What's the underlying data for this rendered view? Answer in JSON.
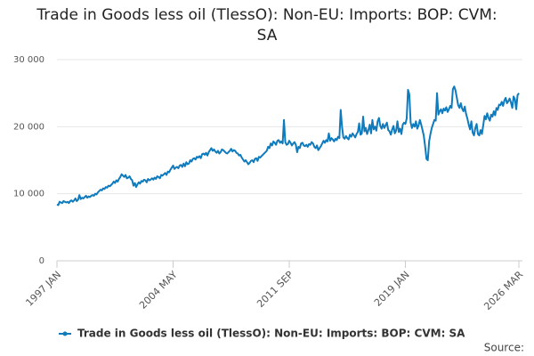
{
  "chart_data": {
    "type": "line",
    "title": "Trade in Goods less oil (TlessO): Non-EU: Imports: BOP: CVM: SA",
    "source": "Source:",
    "categories": [
      "1997 JAN",
      null,
      null,
      null,
      null,
      null,
      null,
      null,
      null,
      null,
      null,
      null,
      null,
      null,
      null,
      null,
      null,
      null,
      null,
      null,
      null,
      null,
      null,
      null,
      null,
      null,
      null,
      null,
      null,
      null,
      null,
      null,
      null,
      null,
      null,
      null,
      null,
      null,
      null,
      null,
      null,
      null,
      null,
      null,
      null,
      null,
      null,
      null,
      null,
      null,
      null,
      null,
      null,
      null,
      null,
      null,
      null,
      null,
      null,
      null,
      null,
      null,
      null,
      null,
      null,
      null,
      null,
      null,
      null,
      null,
      null,
      null,
      null,
      null,
      null,
      null,
      null,
      null,
      null,
      null,
      null,
      null,
      null,
      null,
      null,
      null,
      null,
      null,
      "2004 MAY",
      null,
      null,
      null,
      null,
      null,
      null,
      null,
      null,
      null,
      null,
      null,
      null,
      null,
      null,
      null,
      null,
      null,
      null,
      null,
      null,
      null,
      null,
      null,
      null,
      null,
      null,
      null,
      null,
      null,
      null,
      null,
      null,
      null,
      null,
      null,
      null,
      null,
      null,
      null,
      null,
      null,
      null,
      null,
      null,
      null,
      null,
      null,
      null,
      null,
      null,
      null,
      null,
      null,
      null,
      null,
      null,
      null,
      null,
      null,
      null,
      null,
      null,
      null,
      null,
      null,
      null,
      null,
      null,
      null,
      null,
      null,
      null,
      null,
      null,
      null,
      null,
      null,
      null,
      null,
      null,
      null,
      null,
      null,
      null,
      null,
      null,
      null,
      "2011 SEP",
      null,
      null,
      null,
      null,
      null,
      null,
      null,
      null,
      null,
      null,
      null,
      null,
      null,
      null,
      null,
      null,
      null,
      null,
      null,
      null,
      null,
      null,
      null,
      null,
      null,
      null,
      null,
      null,
      null,
      null,
      null,
      null,
      null,
      null,
      null,
      null,
      null,
      null,
      null,
      null,
      null,
      null,
      null,
      null,
      null,
      null,
      null,
      null,
      null,
      null,
      null,
      null,
      null,
      null,
      null,
      null,
      null,
      null,
      null,
      null,
      null,
      null,
      null,
      null,
      null,
      null,
      null,
      null,
      null,
      null,
      null,
      null,
      null,
      null,
      null,
      null,
      null,
      null,
      null,
      null,
      null,
      null,
      null,
      null,
      null,
      null,
      null,
      "2019 JAN",
      null,
      null,
      null,
      null,
      null,
      null,
      null,
      null,
      null,
      null,
      null,
      null,
      null,
      null,
      null,
      null,
      null,
      null,
      null,
      null,
      null,
      null,
      null,
      null,
      null,
      null,
      null,
      null,
      null,
      null,
      null,
      null,
      null,
      null,
      null,
      null,
      null,
      null,
      null,
      null,
      null,
      null,
      null,
      null,
      null,
      null,
      null,
      null,
      null,
      null,
      null,
      null,
      null,
      null,
      null,
      null,
      null,
      null,
      null,
      null,
      null,
      null,
      null,
      null,
      null,
      null,
      null,
      null,
      null,
      null,
      null,
      null,
      null,
      null,
      null,
      null,
      null,
      null,
      null,
      null,
      null,
      null,
      null,
      null,
      null,
      "2026 MAR"
    ],
    "series": [
      {
        "name": "Trade in Goods less oil (TlessO): Non-EU: Imports: BOP: CVM: SA",
        "color": "#0f7bbd",
        "values": [
          8400,
          8300,
          8800,
          8700,
          8600,
          8900,
          8800,
          8700,
          8800,
          8600,
          8900,
          9000,
          8800,
          9000,
          9300,
          8900,
          9100,
          9800,
          9200,
          9400,
          9300,
          9500,
          9700,
          9400,
          9600,
          9500,
          9700,
          9800,
          9700,
          10000,
          9900,
          10200,
          10400,
          10600,
          10500,
          10800,
          10700,
          11000,
          10900,
          11200,
          11100,
          11300,
          11500,
          11800,
          11600,
          12000,
          11800,
          12200,
          12500,
          12900,
          12700,
          12500,
          12800,
          12300,
          12400,
          12600,
          12200,
          12000,
          11200,
          11600,
          11000,
          11400,
          11700,
          11500,
          11900,
          11800,
          12100,
          12000,
          11700,
          12200,
          12000,
          12100,
          12300,
          12100,
          12400,
          12200,
          12600,
          12500,
          12300,
          12800,
          12700,
          12900,
          13100,
          12800,
          13300,
          13200,
          13600,
          13900,
          14200,
          13700,
          13900,
          14000,
          13800,
          14200,
          14300,
          14000,
          14500,
          14100,
          14700,
          14400,
          14500,
          15000,
          14800,
          15200,
          15300,
          15100,
          15500,
          15400,
          15600,
          15300,
          15900,
          16000,
          15800,
          16100,
          15700,
          16200,
          16500,
          16800,
          16400,
          16600,
          16300,
          16100,
          16400,
          16000,
          16200,
          16600,
          16500,
          16300,
          16100,
          16000,
          16200,
          16400,
          16700,
          16300,
          16500,
          16400,
          16100,
          16000,
          15700,
          15800,
          15400,
          15100,
          14800,
          15000,
          14700,
          14400,
          14600,
          14900,
          15000,
          14700,
          15200,
          15300,
          14900,
          15500,
          15400,
          15600,
          15800,
          16000,
          16200,
          16400,
          17000,
          16800,
          17500,
          17200,
          17800,
          17600,
          17300,
          17900,
          18000,
          17600,
          17800,
          17500,
          21000,
          17700,
          17300,
          17400,
          17900,
          17600,
          17200,
          17500,
          17700,
          17300,
          16200,
          17000,
          16800,
          17500,
          17600,
          17200,
          17100,
          17300,
          17000,
          17400,
          17300,
          17700,
          17500,
          17000,
          16800,
          17200,
          16500,
          16800,
          17100,
          17500,
          17900,
          17600,
          18000,
          17800,
          19000,
          17900,
          18300,
          18100,
          17800,
          18200,
          18000,
          18500,
          18300,
          22500,
          20000,
          18400,
          18200,
          18600,
          18300,
          18100,
          18800,
          18500,
          19000,
          18700,
          18400,
          18900,
          19200,
          20500,
          18800,
          19000,
          21500,
          19300,
          19800,
          18900,
          19500,
          20300,
          19000,
          21000,
          19600,
          20000,
          19400,
          20800,
          21300,
          20100,
          19700,
          20400,
          19800,
          20200,
          20600,
          19500,
          19300,
          18800,
          19600,
          20100,
          19000,
          19400,
          20800,
          19200,
          19700,
          18900,
          20300,
          20600,
          20400,
          21200,
          25500,
          24800,
          20600,
          19800,
          20400,
          20000,
          20800,
          19700,
          20200,
          21000,
          20300,
          19500,
          18600,
          17000,
          15200,
          15000,
          17800,
          18900,
          19800,
          20400,
          21000,
          20900,
          25000,
          21800,
          22300,
          22600,
          22000,
          22700,
          22400,
          22900,
          22200,
          22600,
          23100,
          22800,
          25600,
          26000,
          25400,
          24300,
          23200,
          22800,
          23500,
          22700,
          22300,
          23000,
          21900,
          21200,
          20300,
          19600,
          20800,
          19100,
          18700,
          19800,
          20400,
          18900,
          18700,
          19500,
          18900,
          20200,
          21600,
          21100,
          22000,
          21300,
          20900,
          21800,
          21500,
          22300,
          21700,
          22800,
          22500,
          23300,
          23200,
          23700,
          23100,
          23900,
          24300,
          23500,
          23800,
          24200,
          23600,
          22800,
          24500,
          24100,
          22600,
          24700,
          25000
        ]
      }
    ],
    "ylim": [
      0,
      30000
    ],
    "yticks": [
      0,
      {
        "value": 10000,
        "label": "10 000"
      },
      {
        "value": 20000,
        "label": "20 000"
      },
      {
        "value": 30000,
        "label": "30 000"
      }
    ],
    "grid": true
  }
}
